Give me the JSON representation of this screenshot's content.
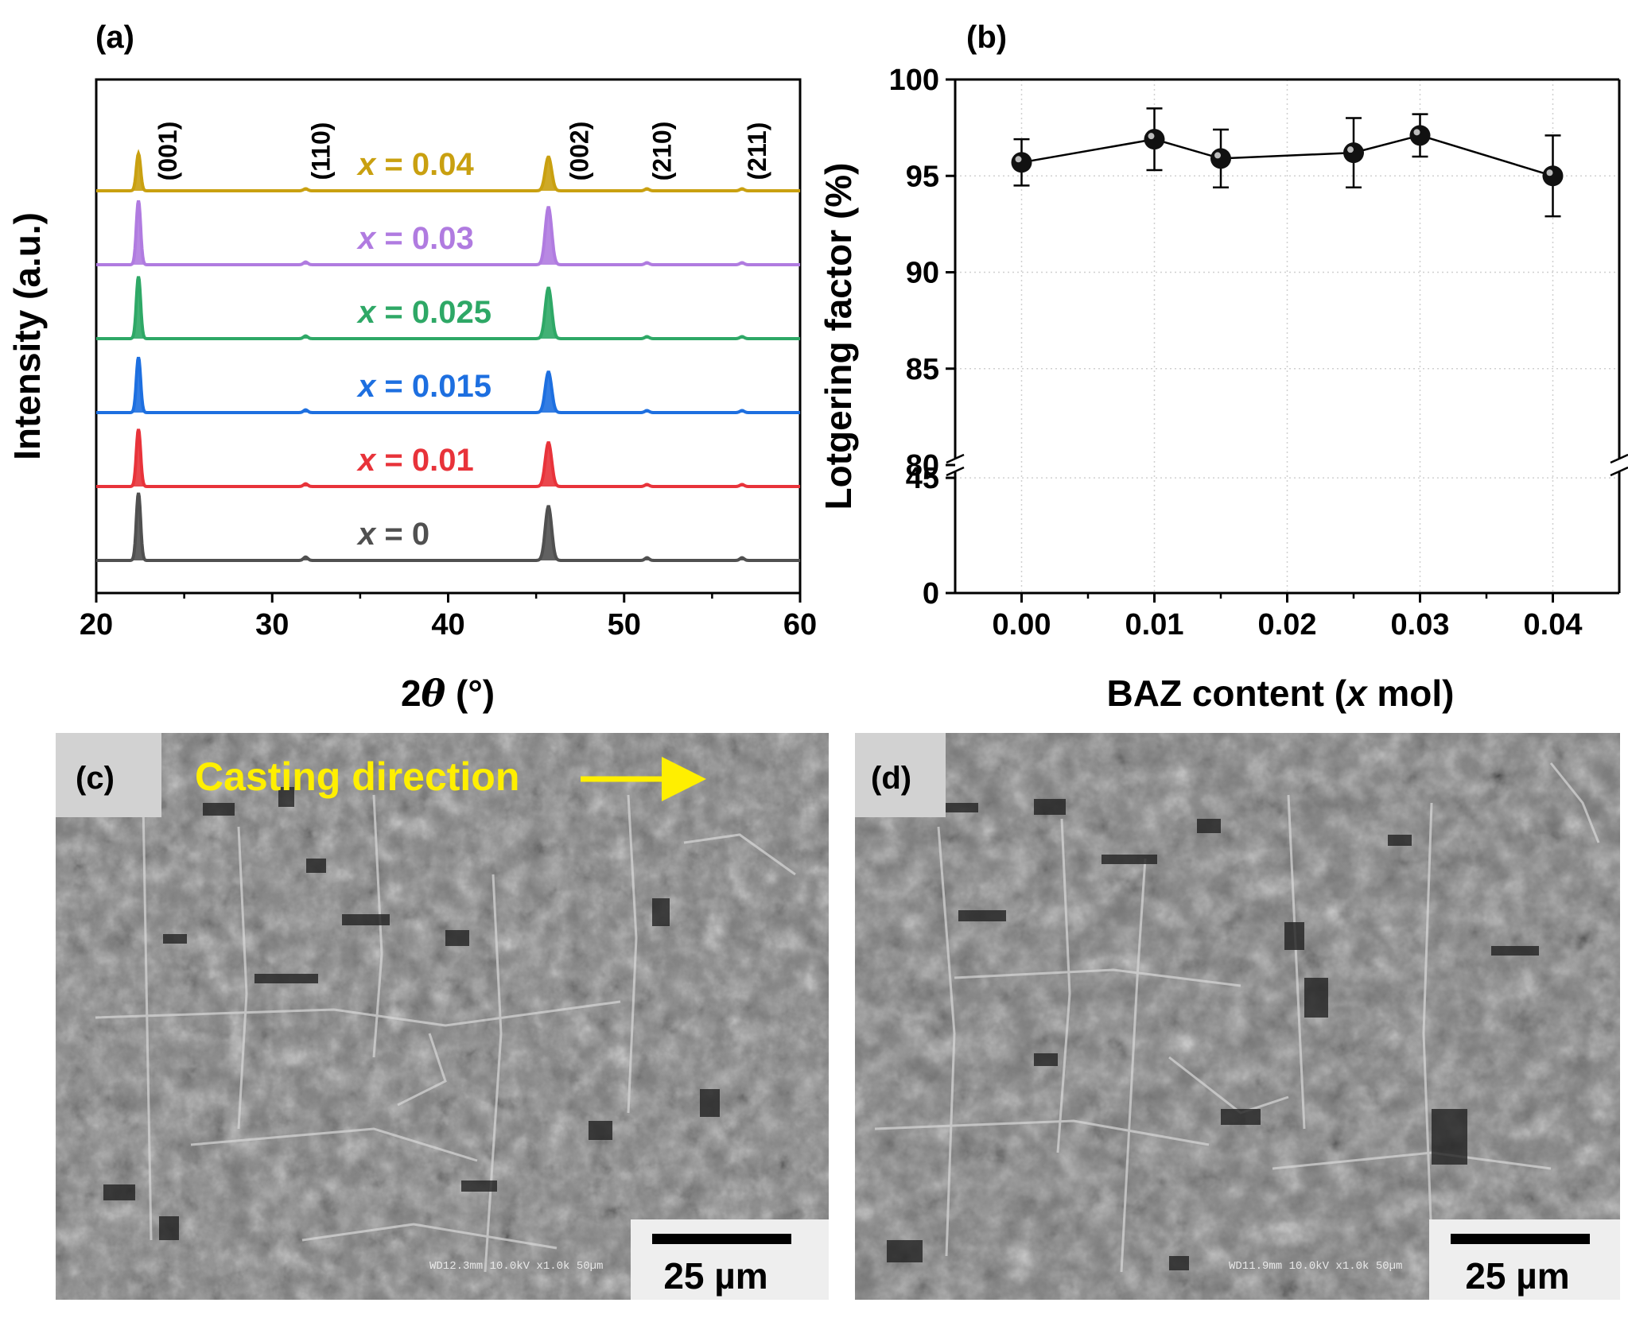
{
  "panels": {
    "a": {
      "label": "(a)",
      "chart_data": {
        "type": "line",
        "title": "",
        "xlabel_prefix": "2",
        "xlabel_symbol": "θ",
        "xlabel_suffix": " (°)",
        "ylabel": "Intensity (a.u.)",
        "xlim": [
          20,
          60
        ],
        "xticks": [
          "20",
          "30",
          "40",
          "50",
          "60"
        ],
        "peaks": [
          {
            "label": "(001)",
            "x": 22.4
          },
          {
            "label": "(110)",
            "x": 31.9
          },
          {
            "label": "(002)",
            "x": 45.7
          },
          {
            "label": "(210)",
            "x": 51.3
          },
          {
            "label": "(211)",
            "x": 56.7
          }
        ],
        "series": [
          {
            "name": "x = 0",
            "prefix": "x",
            "value": " = 0",
            "color": "#505050",
            "peak_heights": [
              1.0,
              0.05,
              0.8,
              0.04,
              0.04
            ]
          },
          {
            "name": "x = 0.01",
            "prefix": "x",
            "value": " = 0.01",
            "color": "#e8333a",
            "peak_heights": [
              0.85,
              0.04,
              0.65,
              0.03,
              0.03
            ]
          },
          {
            "name": "x = 0.015",
            "prefix": "x",
            "value": " = 0.015",
            "color": "#1d6fe0",
            "peak_heights": [
              0.82,
              0.04,
              0.6,
              0.03,
              0.03
            ]
          },
          {
            "name": "x = 0.025",
            "prefix": "x",
            "value": " = 0.025",
            "color": "#2ea866",
            "peak_heights": [
              0.92,
              0.04,
              0.75,
              0.03,
              0.03
            ]
          },
          {
            "name": "x = 0.03",
            "prefix": "x",
            "value": " = 0.03",
            "color": "#b07be0",
            "peak_heights": [
              0.95,
              0.04,
              0.85,
              0.03,
              0.03
            ]
          },
          {
            "name": "x = 0.04",
            "prefix": "x",
            "value": " = 0.04",
            "color": "#c9a010",
            "peak_heights": [
              0.55,
              0.03,
              0.5,
              0.03,
              0.03
            ]
          }
        ]
      }
    },
    "b": {
      "label": "(b)",
      "chart_data": {
        "type": "scatter",
        "title": "",
        "xlabel_prefix": "BAZ content (",
        "xlabel_italic": "x",
        "xlabel_suffix": " mol)",
        "ylabel": "Lotgering factor (%)",
        "xlim": [
          -0.005,
          0.045
        ],
        "xticks": [
          "0.00",
          "0.01",
          "0.02",
          "0.03",
          "0.04"
        ],
        "yticks_upper": [
          "80",
          "85",
          "90",
          "95",
          "100"
        ],
        "yticks_lower": [
          "0",
          "45"
        ],
        "upper_ylim": [
          80,
          100
        ],
        "lower_ylim": [
          0,
          50
        ],
        "grid": true,
        "points": [
          {
            "x": 0.0,
            "y": 95.7,
            "err": 1.2
          },
          {
            "x": 0.01,
            "y": 96.9,
            "err": 1.6
          },
          {
            "x": 0.015,
            "y": 95.9,
            "err": 1.5
          },
          {
            "x": 0.025,
            "y": 96.2,
            "err": 1.8
          },
          {
            "x": 0.03,
            "y": 97.1,
            "err": 1.1
          },
          {
            "x": 0.04,
            "y": 95.0,
            "err": 2.1
          }
        ]
      }
    },
    "c": {
      "label": "(c)",
      "casting_label": "Casting direction",
      "sem_info": "WD12.3mm 10.0kV x1.0k 50µm",
      "scale_bar": "25 µm"
    },
    "d": {
      "label": "(d)",
      "sem_info": "WD11.9mm 10.0kV x1.0k 50µm",
      "scale_bar": "25 µm"
    }
  },
  "colors": {
    "axis": "#000000",
    "grid": "#d0d0d0",
    "sem_base": "#7d7d7d",
    "arrow": "#ffef00"
  }
}
